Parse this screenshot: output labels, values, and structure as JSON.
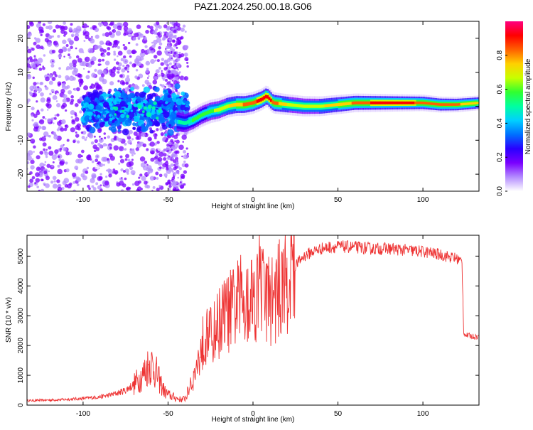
{
  "title": "PAZ1.2024.250.00.18.G06",
  "chart_data": [
    {
      "type": "heatmap",
      "xlabel": "Height of straight line (km)",
      "ylabel": "Frequency (Hz)",
      "xlim": [
        -133,
        133
      ],
      "ylim": [
        -25,
        25
      ],
      "xticks": [
        -100,
        -50,
        0,
        50,
        100
      ],
      "yticks": [
        -20,
        -10,
        0,
        10,
        20
      ],
      "colorbar": {
        "label": "Normalized spectral amplitude",
        "range": [
          0,
          1
        ],
        "ticks": [
          "0.0",
          "0.2",
          "0.4",
          "0.6",
          "0.8"
        ],
        "colors": [
          "#ffffff",
          "#b48cff",
          "#7a00ff",
          "#2a00ff",
          "#0070ff",
          "#00d0ff",
          "#00ffa0",
          "#30ff30",
          "#c8ff00",
          "#ffd000",
          "#ff6000",
          "#ff0000",
          "#ff0080"
        ]
      },
      "ridge": {
        "x": [
          -45,
          -40,
          -35,
          -30,
          -25,
          -20,
          -15,
          -10,
          -5,
          0,
          5,
          8,
          12,
          20,
          30,
          40,
          50,
          60,
          70,
          80,
          90,
          100,
          110,
          120,
          133
        ],
        "freq": [
          -4.5,
          -5,
          -4,
          -2.5,
          -1.5,
          -1,
          0,
          0.5,
          0.5,
          1,
          2,
          3,
          1,
          0.5,
          0,
          0,
          0.5,
          1,
          1,
          1,
          1,
          1,
          0.5,
          0.5,
          1
        ],
        "amp": [
          0.45,
          0.5,
          0.55,
          0.55,
          0.6,
          0.65,
          0.7,
          0.75,
          0.8,
          0.85,
          0.9,
          0.92,
          0.85,
          0.7,
          0.65,
          0.7,
          0.75,
          0.8,
          0.88,
          0.9,
          0.9,
          0.85,
          0.8,
          0.8,
          0.75
        ]
      }
    },
    {
      "type": "line",
      "xlabel": "Height of straight line (km)",
      "ylabel": "SNR (10 * v/v)",
      "xlim": [
        -133,
        133
      ],
      "ylim": [
        0,
        5700
      ],
      "xticks": [
        -100,
        -50,
        0,
        50,
        100
      ],
      "yticks": [
        0,
        1000,
        2000,
        3000,
        4000,
        5000
      ],
      "line_color": "#ee3333",
      "series": [
        {
          "x": [
            -133,
            -120,
            -110,
            -100,
            -90,
            -85,
            -80,
            -75,
            -70,
            -65,
            -62,
            -60,
            -57,
            -55,
            -52,
            -50,
            -45,
            -42,
            -40,
            -38,
            -35,
            -32,
            -30,
            -28,
            -27,
            -25,
            -22,
            -20,
            -15,
            -12,
            -10,
            -5,
            0,
            5,
            10,
            15,
            20,
            25,
            30,
            35,
            40,
            45,
            50,
            60,
            70,
            80,
            90,
            100,
            110,
            115,
            120,
            123,
            124,
            125,
            130,
            133
          ],
          "y": [
            150,
            170,
            190,
            220,
            280,
            330,
            400,
            500,
            700,
            1000,
            1300,
            1400,
            1100,
            800,
            450,
            350,
            230,
            180,
            230,
            450,
            900,
            1500,
            2000,
            2400,
            2600,
            2300,
            2500,
            2800,
            3100,
            3200,
            3400,
            3600,
            3700,
            3900,
            3500,
            3800,
            4300,
            4700,
            5000,
            5150,
            5250,
            5300,
            5320,
            5300,
            5250,
            5250,
            5200,
            5150,
            5050,
            4980,
            4920,
            4800,
            2450,
            2350,
            2300,
            2300
          ]
        }
      ]
    }
  ]
}
